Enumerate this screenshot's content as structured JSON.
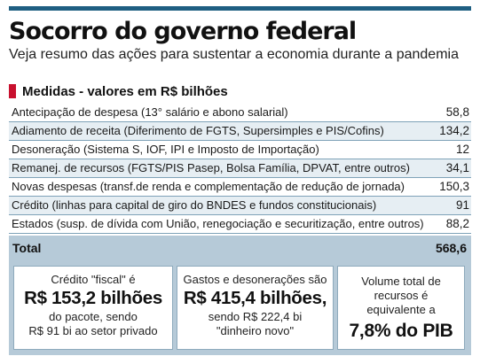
{
  "header": {
    "title": "Socorro do governo federal",
    "subtitle": "Veja resumo das ações para sustentar a economia durante a pandemia"
  },
  "section": {
    "label": "Medidas - valores em R$ bilhões",
    "marker_color": "#c8102e"
  },
  "measures": [
    {
      "label": "Antecipação de despesa (13° salário e abono salarial)",
      "value": "58,8"
    },
    {
      "label": "Adiamento de receita (Diferimento de FGTS, Supersimples e PIS/Cofins)",
      "value": "134,2"
    },
    {
      "label": "Desoneração (Sistema S, IOF, IPI e Imposto de Importação)",
      "value": "12"
    },
    {
      "label": "Remanej. de recursos (FGTS/PIS Pasep, Bolsa Família, DPVAT, entre outros)",
      "value": "34,1"
    },
    {
      "label": "Novas despesas (transf.de renda e complementação de redução de jornada)",
      "value": "150,3"
    },
    {
      "label": "Crédito  (linhas para capital de giro do BNDES e fundos constitucionais)",
      "value": "91"
    },
    {
      "label": "Estados (susp. de dívida com União, renegociação e securitização, entre outros)",
      "value": "88,2"
    }
  ],
  "total": {
    "label": "Total",
    "value": "568,6"
  },
  "highlights": {
    "credit": {
      "line1": "Crédito \"fiscal\" é",
      "big": "R$ 153,2 bilhões",
      "line2": "do pacote, sendo",
      "line3": "R$ 91 bi ao setor privado"
    },
    "spending": {
      "line1": "Gastos e desonerações são",
      "big": "R$ 415,4 bilhões,",
      "line2": "sendo R$ 222,4 bi",
      "line3": "\"dinheiro novo\""
    },
    "gdp": {
      "line1": "Volume total de",
      "line2": "recursos é",
      "line3": "equivalente a",
      "big": "7,8% do PIB"
    }
  },
  "colors": {
    "accent_blue": "#1f5f82",
    "row_shade": "#e6eef3",
    "total_band": "#b6cad8",
    "divider": "#7fa2b8"
  }
}
